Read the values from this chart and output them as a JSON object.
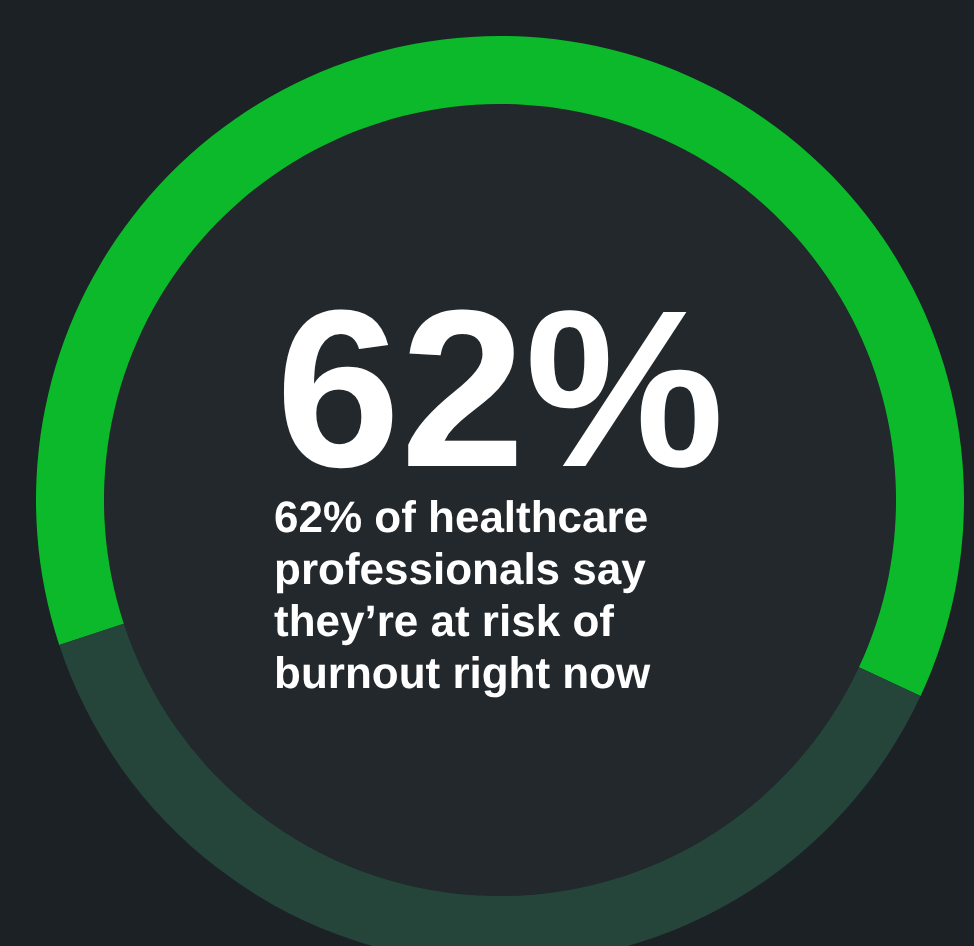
{
  "chart_data": {
    "type": "donut",
    "title": "62%",
    "subtitle": "62% of healthcare professionals say they’re at risk of burnout right now",
    "categories": [
      null,
      null
    ],
    "values": [
      62,
      38
    ],
    "colors": [
      "#0cb92a",
      "#25443a"
    ],
    "legend": false
  }
}
